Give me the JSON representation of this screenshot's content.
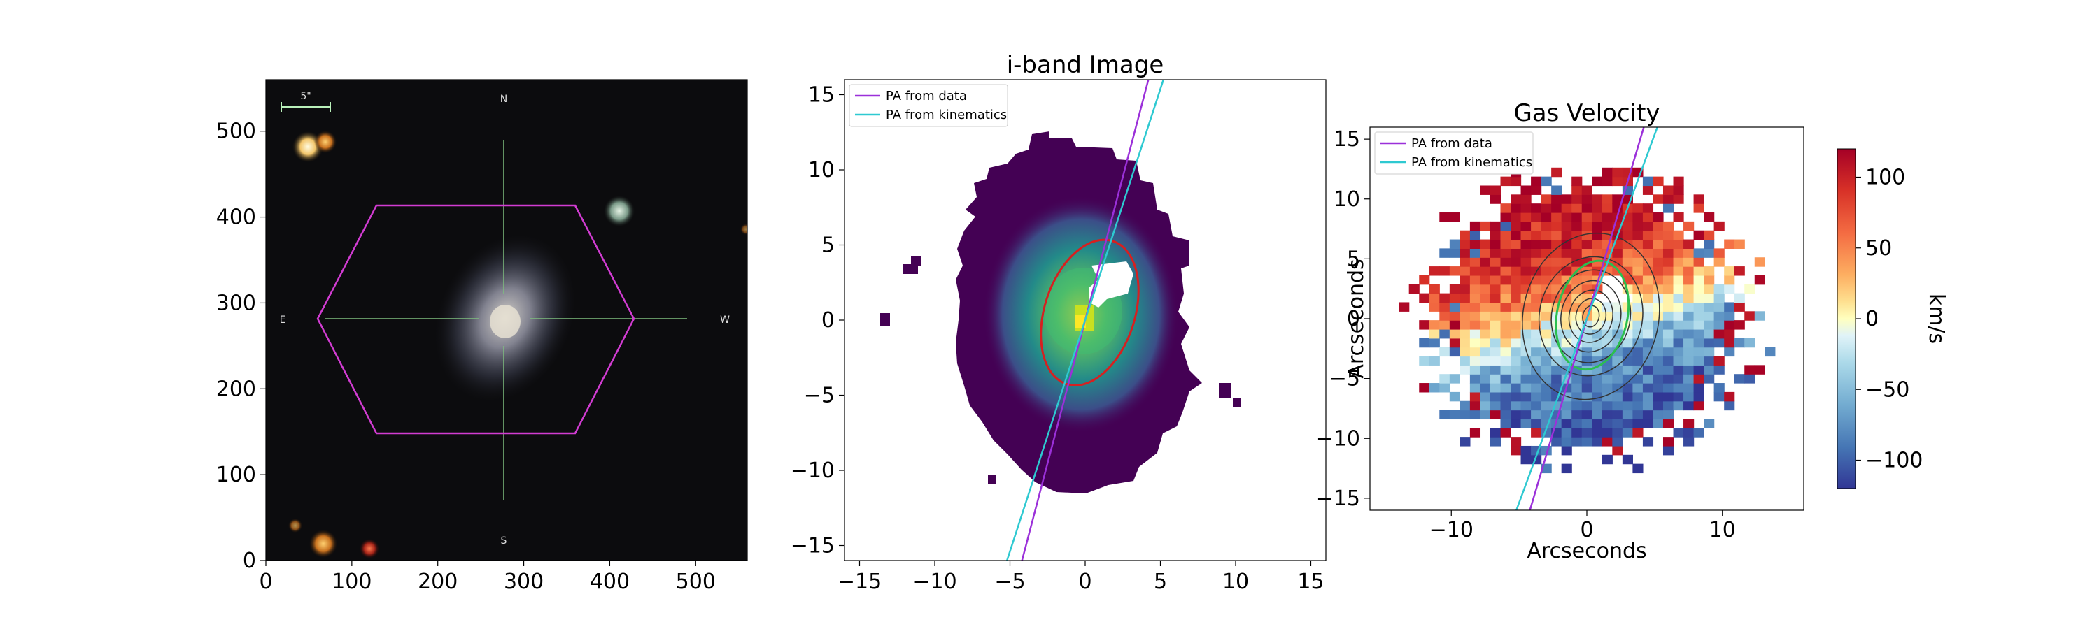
{
  "chart_data": [
    {
      "type": "image",
      "title": "",
      "xlabel": "",
      "ylabel": "",
      "xlim": [
        0,
        560
      ],
      "ylim": [
        560,
        0
      ],
      "xticks": [
        0,
        100,
        200,
        300,
        400,
        500
      ],
      "yticks": [
        0,
        100,
        200,
        300,
        400,
        500
      ],
      "compass": {
        "north": "N",
        "south": "S",
        "east": "E",
        "west": "W"
      },
      "scale_bar_label": "5\"",
      "hexagon_color": "#d23cd2",
      "crosshair_color": "#7fbf7f"
    },
    {
      "type": "heatmap",
      "title": "i-band Image",
      "xlabel": "",
      "ylabel": "",
      "xlim": [
        -16,
        16
      ],
      "ylim": [
        16,
        -16
      ],
      "xticks": [
        -15,
        -10,
        -5,
        0,
        5,
        10,
        15
      ],
      "yticks": [
        -15,
        -10,
        -5,
        0,
        5,
        10,
        15
      ],
      "legend": [
        {
          "label": "PA from data",
          "color": "#9b30d9"
        },
        {
          "label": "PA from kinematics",
          "color": "#2ec9d1"
        }
      ],
      "ellipse": {
        "center": [
          0.3,
          -0.5
        ],
        "semi_major": 5,
        "semi_minor": 3,
        "angle_deg": 18,
        "color": "#d62020"
      },
      "pa_data_line": {
        "x": [
          -4.2,
          4.2
        ],
        "y": [
          16,
          -16
        ]
      },
      "pa_kin_line": {
        "x": [
          -5.2,
          5.2
        ],
        "y": [
          16,
          -16
        ]
      },
      "colormap": "viridis"
    },
    {
      "type": "heatmap",
      "title": "Gas Velocity",
      "xlabel": "Arcseconds",
      "ylabel": "Arcseconds",
      "xlim": [
        -16,
        16
      ],
      "ylim": [
        -16,
        16
      ],
      "xticks": [
        -10,
        0,
        10
      ],
      "yticks": [
        -15,
        -10,
        -5,
        0,
        5,
        10,
        15
      ],
      "legend": [
        {
          "label": "PA from data",
          "color": "#9b30d9"
        },
        {
          "label": "PA from kinematics",
          "color": "#2ec9d1"
        }
      ],
      "colorbar": {
        "label": "km/s",
        "range": [
          -120,
          120
        ],
        "ticks": [
          100,
          50,
          0,
          -50,
          -100
        ],
        "tick_labels": [
          "100",
          "50",
          "0",
          "−50",
          "−100"
        ],
        "colormap": "RdYlBu_r"
      },
      "ellipse_color": "#2bbf4f",
      "contour_color": "#333333"
    }
  ],
  "tick_labels": {
    "p1x": [
      "0",
      "100",
      "200",
      "300",
      "400",
      "500"
    ],
    "p1y": [
      "0",
      "100",
      "200",
      "300",
      "400",
      "500"
    ],
    "p2x": [
      "−15",
      "−10",
      "−5",
      "0",
      "5",
      "10",
      "15"
    ],
    "p2y": [
      "−15",
      "−10",
      "−5",
      "0",
      "5",
      "10",
      "15"
    ],
    "p3x": [
      "−10",
      "0",
      "10"
    ],
    "p3y": [
      "15",
      "10",
      "5",
      "0",
      "−5",
      "−10",
      "−15"
    ]
  }
}
